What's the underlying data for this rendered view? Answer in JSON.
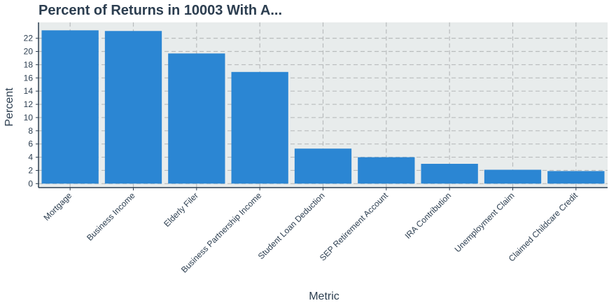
{
  "chart_data": {
    "type": "bar",
    "title": "Percent of Returns in 10003 With A...",
    "xlabel": "Metric",
    "ylabel": "Percent",
    "categories": [
      "Mortgage",
      "Business Income",
      "Elderly Filer",
      "Business Partnership Income",
      "Student Loan Deduction",
      "SEP Retirement Account",
      "IRA Contribution",
      "Unemployment Claim",
      "Claimed Childcare Credit"
    ],
    "values": [
      23.2,
      23.1,
      19.7,
      16.9,
      5.3,
      4.0,
      3.0,
      2.1,
      1.9
    ],
    "yticks": [
      0,
      2,
      4,
      6,
      8,
      10,
      12,
      14,
      16,
      18,
      20,
      22
    ],
    "ylim": [
      -0.6,
      24.4
    ],
    "grid": true,
    "colors": {
      "bar": "#2b86d3",
      "panel": "#e8ecec",
      "grid": "#b9bcbd",
      "axis": "#2c3e50",
      "text": "#2c3e50"
    }
  }
}
